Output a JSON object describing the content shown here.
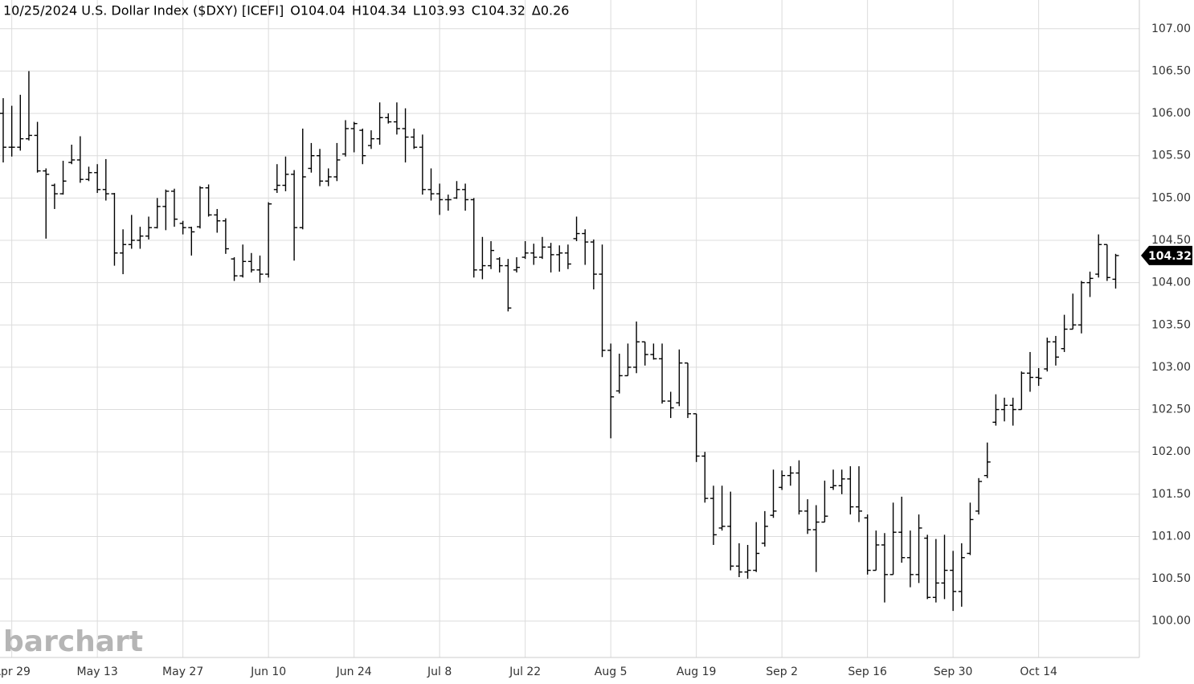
{
  "chart_data": {
    "type": "ohlc",
    "title": "10/25/2024 U.S. Dollar Index ($DXY) [ICEFI]",
    "ohlc_labels": [
      "O104.04",
      "H104.34",
      "L103.93",
      "C104.32",
      "Δ0.26"
    ],
    "watermark": "barchart",
    "last_price_label": "104.32",
    "color": "#000000",
    "grid": true,
    "ylim": [
      99.57,
      107.34
    ],
    "yticks": [
      {
        "value": 100,
        "label": "100.00"
      },
      {
        "value": 100.5,
        "label": "100.50"
      },
      {
        "value": 101,
        "label": "101.00"
      },
      {
        "value": 101.5,
        "label": "101.50"
      },
      {
        "value": 102,
        "label": "102.00"
      },
      {
        "value": 102.5,
        "label": "102.50"
      },
      {
        "value": 103,
        "label": "103.00"
      },
      {
        "value": 103.5,
        "label": "103.50"
      },
      {
        "value": 104,
        "label": "104.00"
      },
      {
        "value": 104.5,
        "label": "104.50"
      },
      {
        "value": 105,
        "label": "105.00"
      },
      {
        "value": 105.5,
        "label": "105.50"
      },
      {
        "value": 106,
        "label": "106.00"
      },
      {
        "value": 106.5,
        "label": "106.50"
      },
      {
        "value": 107,
        "label": "107.00"
      }
    ],
    "categories": [
      null,
      "Apr 29",
      null,
      null,
      null,
      null,
      null,
      null,
      null,
      null,
      null,
      "May 13",
      null,
      null,
      null,
      null,
      null,
      null,
      null,
      null,
      null,
      "May 27",
      null,
      null,
      null,
      null,
      null,
      null,
      null,
      null,
      null,
      "Jun 10",
      null,
      null,
      null,
      null,
      null,
      null,
      null,
      null,
      null,
      "Jun 24",
      null,
      null,
      null,
      null,
      null,
      null,
      null,
      null,
      null,
      "Jul 8",
      null,
      null,
      null,
      null,
      null,
      null,
      null,
      null,
      null,
      "Jul 22",
      null,
      null,
      null,
      null,
      null,
      null,
      null,
      null,
      null,
      "Aug 5",
      null,
      null,
      null,
      null,
      null,
      null,
      null,
      null,
      null,
      "Aug 19",
      null,
      null,
      null,
      null,
      null,
      null,
      null,
      null,
      null,
      "Sep 2",
      null,
      null,
      null,
      null,
      null,
      null,
      null,
      null,
      null,
      "Sep 16",
      null,
      null,
      null,
      null,
      null,
      null,
      null,
      null,
      null,
      "Sep 30",
      null,
      null,
      null,
      null,
      null,
      null,
      null,
      null,
      null,
      "Oct 14",
      null,
      null,
      null,
      null,
      null,
      null,
      null,
      null,
      null
    ],
    "open": [
      106.0,
      105.6,
      105.6,
      105.7,
      105.74,
      105.32,
      105.15,
      105.05,
      105.42,
      105.45,
      105.22,
      105.3,
      105.1,
      105.05,
      104.35,
      104.45,
      104.5,
      104.55,
      104.65,
      104.9,
      105.08,
      104.7,
      104.65,
      104.66,
      105.12,
      104.8,
      104.73,
      104.28,
      104.08,
      104.25,
      104.15,
      104.1,
      105.1,
      105.15,
      105.28,
      104.65,
      105.35,
      105.5,
      105.2,
      105.25,
      105.52,
      105.82,
      105.8,
      105.62,
      105.7,
      105.95,
      105.9,
      105.82,
      105.72,
      105.6,
      105.1,
      105.05,
      104.98,
      105.0,
      105.1,
      104.98,
      104.15,
      104.2,
      104.28,
      104.2,
      104.15,
      104.3,
      104.35,
      104.3,
      104.42,
      104.33,
      104.35,
      104.52,
      104.58,
      104.48,
      104.1,
      103.2,
      102.72,
      102.9,
      103.0,
      103.3,
      103.15,
      103.1,
      102.6,
      102.58,
      103.05,
      102.45,
      101.95,
      101.45,
      101.1,
      101.12,
      100.65,
      100.58,
      100.6,
      100.92,
      101.25,
      101.58,
      101.72,
      101.75,
      101.3,
      101.08,
      101.17,
      101.58,
      101.6,
      101.68,
      101.35,
      101.22,
      100.6,
      100.9,
      100.55,
      101.05,
      100.75,
      100.55,
      100.98,
      100.28,
      100.45,
      100.6,
      100.35,
      100.8,
      101.3,
      101.72,
      102.35,
      102.5,
      102.55,
      102.5,
      102.93,
      102.88,
      102.98,
      103.3,
      103.22,
      103.45,
      103.5,
      104.0,
      104.1,
      104.45,
      104.04
    ],
    "high": [
      106.18,
      106.09,
      106.22,
      106.5,
      105.9,
      105.35,
      105.17,
      105.44,
      105.63,
      105.73,
      105.37,
      105.4,
      105.46,
      105.06,
      104.63,
      104.8,
      104.66,
      104.78,
      105.0,
      105.1,
      105.11,
      104.73,
      104.66,
      105.14,
      105.16,
      104.87,
      104.76,
      104.3,
      104.45,
      104.35,
      104.32,
      104.95,
      105.4,
      105.49,
      105.33,
      105.82,
      105.65,
      105.58,
      105.35,
      105.65,
      105.92,
      105.9,
      105.82,
      105.8,
      106.13,
      106.0,
      106.13,
      106.06,
      105.82,
      105.75,
      105.35,
      105.17,
      105.04,
      105.2,
      105.17,
      105.0,
      104.54,
      104.49,
      104.3,
      104.28,
      104.3,
      104.49,
      104.46,
      104.54,
      104.47,
      104.44,
      104.45,
      104.78,
      104.63,
      104.51,
      104.45,
      103.28,
      103.16,
      103.28,
      103.54,
      103.3,
      103.28,
      103.28,
      102.71,
      103.21,
      103.05,
      102.45,
      102.0,
      101.6,
      101.6,
      101.53,
      100.92,
      100.9,
      101.17,
      101.3,
      101.79,
      101.78,
      101.83,
      101.9,
      101.44,
      101.37,
      101.66,
      101.79,
      101.79,
      101.83,
      101.83,
      101.26,
      101.07,
      101.04,
      101.4,
      101.47,
      101.07,
      101.26,
      101.02,
      100.97,
      101.02,
      100.83,
      100.92,
      101.4,
      101.69,
      102.11,
      102.68,
      102.64,
      102.64,
      102.95,
      103.18,
      102.99,
      103.35,
      103.37,
      103.62,
      103.87,
      104.02,
      104.13,
      104.57,
      104.45,
      104.34
    ],
    "low": [
      105.42,
      105.49,
      105.56,
      105.68,
      105.3,
      104.52,
      104.87,
      105.04,
      105.4,
      105.18,
      105.2,
      105.06,
      104.97,
      104.2,
      104.1,
      104.4,
      104.4,
      104.51,
      104.64,
      104.62,
      104.66,
      104.57,
      104.32,
      104.64,
      104.78,
      104.59,
      104.34,
      104.02,
      104.06,
      104.12,
      104.0,
      104.06,
      105.06,
      105.08,
      104.26,
      104.63,
      105.3,
      105.14,
      105.14,
      105.2,
      105.49,
      105.54,
      105.4,
      105.58,
      105.63,
      105.88,
      105.75,
      105.42,
      105.58,
      105.04,
      104.97,
      104.8,
      104.85,
      104.99,
      104.85,
      104.06,
      104.04,
      104.16,
      104.12,
      103.66,
      104.12,
      104.28,
      104.21,
      104.28,
      104.12,
      104.13,
      104.16,
      104.49,
      104.21,
      103.92,
      103.12,
      102.16,
      102.69,
      102.9,
      102.93,
      103.02,
      103.09,
      102.57,
      102.4,
      102.54,
      102.4,
      101.88,
      101.4,
      100.9,
      101.07,
      100.6,
      100.52,
      100.5,
      100.58,
      100.88,
      101.22,
      101.55,
      101.6,
      101.26,
      101.03,
      100.58,
      101.17,
      101.55,
      101.5,
      101.26,
      101.17,
      100.55,
      100.6,
      100.22,
      100.55,
      100.69,
      100.4,
      100.45,
      100.26,
      100.22,
      100.26,
      100.12,
      100.17,
      100.78,
      101.26,
      101.69,
      102.31,
      102.36,
      102.31,
      102.5,
      102.71,
      102.78,
      102.95,
      103.02,
      103.18,
      103.45,
      103.4,
      103.83,
      104.06,
      104.02,
      103.93
    ],
    "close": [
      105.6,
      105.6,
      105.7,
      105.74,
      105.32,
      105.28,
      105.05,
      105.2,
      105.45,
      105.22,
      105.3,
      105.1,
      105.05,
      104.35,
      104.45,
      104.5,
      104.55,
      104.65,
      104.9,
      105.08,
      104.75,
      104.65,
      104.6,
      105.12,
      104.8,
      104.73,
      104.4,
      104.08,
      104.25,
      104.15,
      104.1,
      104.93,
      105.15,
      105.28,
      104.65,
      105.25,
      105.5,
      105.2,
      105.25,
      105.45,
      105.82,
      105.88,
      105.5,
      105.7,
      105.95,
      105.9,
      105.82,
      105.72,
      105.6,
      105.1,
      105.05,
      104.98,
      104.98,
      105.1,
      104.98,
      104.15,
      104.2,
      104.38,
      104.2,
      103.7,
      104.18,
      104.35,
      104.3,
      104.42,
      104.33,
      104.35,
      104.22,
      104.58,
      104.48,
      104.1,
      103.2,
      102.65,
      102.9,
      103.0,
      103.3,
      103.15,
      103.1,
      102.6,
      102.52,
      103.05,
      102.45,
      101.95,
      101.45,
      101.02,
      101.12,
      100.65,
      100.58,
      100.6,
      100.8,
      101.12,
      101.3,
      101.72,
      101.75,
      101.3,
      101.08,
      101.17,
      101.24,
      101.6,
      101.68,
      101.35,
      101.3,
      100.6,
      100.9,
      100.55,
      101.05,
      100.75,
      100.55,
      101.1,
      100.28,
      100.45,
      100.6,
      100.35,
      100.75,
      101.2,
      101.65,
      101.88,
      102.5,
      102.55,
      102.5,
      102.93,
      102.88,
      102.87,
      103.3,
      103.12,
      103.45,
      103.5,
      104.0,
      104.05,
      104.45,
      104.06,
      104.32
    ]
  }
}
